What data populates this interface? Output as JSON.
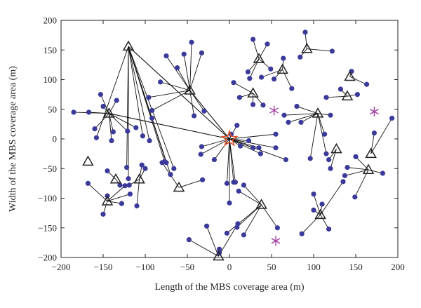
{
  "chart_data": {
    "type": "scatter",
    "title": "",
    "xlabel": "Length of the MBS coverage area (m)",
    "ylabel": "Width of the MBS coverage area (m)",
    "xlim": [
      -200,
      200
    ],
    "ylim": [
      -200,
      200
    ],
    "xticks": [
      -200,
      -150,
      -100,
      -50,
      0,
      50,
      100,
      150,
      200
    ],
    "yticks": [
      -200,
      -150,
      -100,
      -50,
      0,
      50,
      100,
      150,
      200
    ],
    "grid": false,
    "legend": "none",
    "colors": {
      "user": "#3b3a9a",
      "mbs": "#e0522a",
      "sbs": "#222222",
      "link": "#111111",
      "unassociated": "#a23ba0"
    },
    "mbs": {
      "x": 0,
      "y": 0
    },
    "sbs": [
      {
        "x": -120,
        "y": 156
      },
      {
        "x": 35,
        "y": 135
      },
      {
        "x": 92,
        "y": 152
      },
      {
        "x": 63,
        "y": 117
      },
      {
        "x": 143,
        "y": 105
      },
      {
        "x": -47,
        "y": 82
      },
      {
        "x": 28,
        "y": 77
      },
      {
        "x": 140,
        "y": 72
      },
      {
        "x": -143,
        "y": 43
      },
      {
        "x": 105,
        "y": 43
      },
      {
        "x": -168,
        "y": -38
      },
      {
        "x": 168,
        "y": -25
      },
      {
        "x": 127,
        "y": -17
      },
      {
        "x": -135,
        "y": -68
      },
      {
        "x": -107,
        "y": -68
      },
      {
        "x": -60,
        "y": -82
      },
      {
        "x": 165,
        "y": -52
      },
      {
        "x": -145,
        "y": -105
      },
      {
        "x": 38,
        "y": -111
      },
      {
        "x": 108,
        "y": -128
      },
      {
        "x": -13,
        "y": -198
      }
    ],
    "unassociated": [
      {
        "x": 53,
        "y": 48
      },
      {
        "x": 172,
        "y": 46
      },
      {
        "x": 55,
        "y": -172
      }
    ],
    "links": [
      [
        0,
        -158,
        2
      ],
      [
        0,
        -103,
        5
      ],
      [
        0,
        -92,
        35
      ],
      [
        0,
        -95,
        -3
      ],
      [
        0,
        -75,
        -40
      ],
      [
        0,
        -70,
        -60
      ],
      [
        0,
        -66,
        -50
      ],
      [
        0,
        -77,
        -38
      ],
      [
        0,
        -122,
        -48
      ],
      [
        0,
        -120,
        -67
      ],
      [
        1,
        22,
        113
      ],
      [
        1,
        24,
        102
      ],
      [
        1,
        28,
        168
      ],
      [
        1,
        45,
        160
      ],
      [
        1,
        49,
        118
      ],
      [
        2,
        90,
        180
      ],
      [
        2,
        122,
        148
      ],
      [
        2,
        84,
        138
      ],
      [
        3,
        38,
        104
      ],
      [
        3,
        64,
        136
      ],
      [
        3,
        74,
        85
      ],
      [
        3,
        53,
        101
      ],
      [
        4,
        145,
        114
      ],
      [
        4,
        163,
        92
      ],
      [
        5,
        -75,
        140
      ],
      [
        5,
        -54,
        143
      ],
      [
        5,
        -45,
        163
      ],
      [
        5,
        -33,
        145
      ],
      [
        5,
        -62,
        120
      ],
      [
        5,
        -30,
        47
      ],
      [
        5,
        -92,
        48
      ],
      [
        5,
        -96,
        70
      ],
      [
        5,
        -82,
        96
      ],
      [
        5,
        -42,
        39
      ],
      [
        6,
        5,
        95
      ],
      [
        6,
        28,
        58
      ],
      [
        6,
        40,
        57
      ],
      [
        6,
        12,
        70
      ],
      [
        7,
        132,
        84
      ],
      [
        7,
        152,
        75
      ],
      [
        7,
        115,
        70
      ],
      [
        8,
        -185,
        45
      ],
      [
        8,
        -167,
        45
      ],
      [
        8,
        -150,
        55
      ],
      [
        8,
        -153,
        75
      ],
      [
        8,
        -134,
        65
      ],
      [
        8,
        -138,
        12
      ],
      [
        8,
        -140,
        -3
      ],
      [
        8,
        -121,
        13
      ],
      [
        8,
        -160,
        17
      ],
      [
        8,
        -111,
        19
      ],
      [
        9,
        80,
        55
      ],
      [
        9,
        70,
        28
      ],
      [
        9,
        65,
        40
      ],
      [
        9,
        85,
        28
      ],
      [
        9,
        120,
        40
      ],
      [
        9,
        113,
        8
      ],
      [
        9,
        96,
        -33
      ],
      [
        9,
        115,
        -25
      ],
      [
        11,
        172,
        10
      ],
      [
        11,
        193,
        35
      ],
      [
        12,
        118,
        -35
      ],
      [
        12,
        120,
        -50
      ],
      [
        13,
        -145,
        -54
      ],
      [
        13,
        -130,
        -78
      ],
      [
        14,
        -104,
        -44
      ],
      [
        14,
        -100,
        -50
      ],
      [
        14,
        -119,
        -78
      ],
      [
        14,
        -110,
        -113
      ],
      [
        15,
        -80,
        -40
      ],
      [
        15,
        -32,
        -69
      ],
      [
        16,
        150,
        -30
      ],
      [
        16,
        140,
        -48
      ],
      [
        16,
        182,
        -58
      ],
      [
        16,
        149,
        -98
      ],
      [
        16,
        137,
        -62
      ],
      [
        17,
        -168,
        -75
      ],
      [
        17,
        -124,
        -79
      ],
      [
        17,
        -118,
        -93
      ],
      [
        17,
        -128,
        -109
      ],
      [
        17,
        -150,
        -127
      ],
      [
        17,
        -145,
        -96
      ],
      [
        18,
        17,
        -78
      ],
      [
        18,
        11,
        -88
      ],
      [
        18,
        17,
        -162
      ],
      [
        18,
        9,
        -149
      ],
      [
        18,
        -3,
        -159
      ],
      [
        18,
        57,
        -150
      ],
      [
        19,
        100,
        -120
      ],
      [
        19,
        110,
        -110
      ],
      [
        19,
        86,
        -160
      ],
      [
        19,
        100,
        -93
      ],
      [
        19,
        118,
        -152
      ],
      [
        19,
        135,
        -72
      ],
      [
        20,
        -27,
        -147
      ],
      [
        20,
        -48,
        -170
      ],
      [
        20,
        -12,
        -186
      ],
      [
        20,
        -12,
        -192
      ],
      [
        20,
        10,
        -143
      ]
    ],
    "mbs_users": [
      [
        2,
        8
      ],
      [
        9,
        23
      ],
      [
        -3,
        -75
      ],
      [
        0,
        -108
      ],
      [
        5,
        -73
      ],
      [
        7,
        -73
      ],
      [
        13,
        -12
      ],
      [
        23,
        -3
      ],
      [
        28,
        -15
      ],
      [
        37,
        -25
      ],
      [
        35,
        -15
      ],
      [
        55,
        -15
      ],
      [
        55,
        8
      ],
      [
        67,
        -35
      ],
      [
        -18,
        -35
      ],
      [
        -34,
        -26
      ],
      [
        -33,
        -13
      ]
    ]
  }
}
